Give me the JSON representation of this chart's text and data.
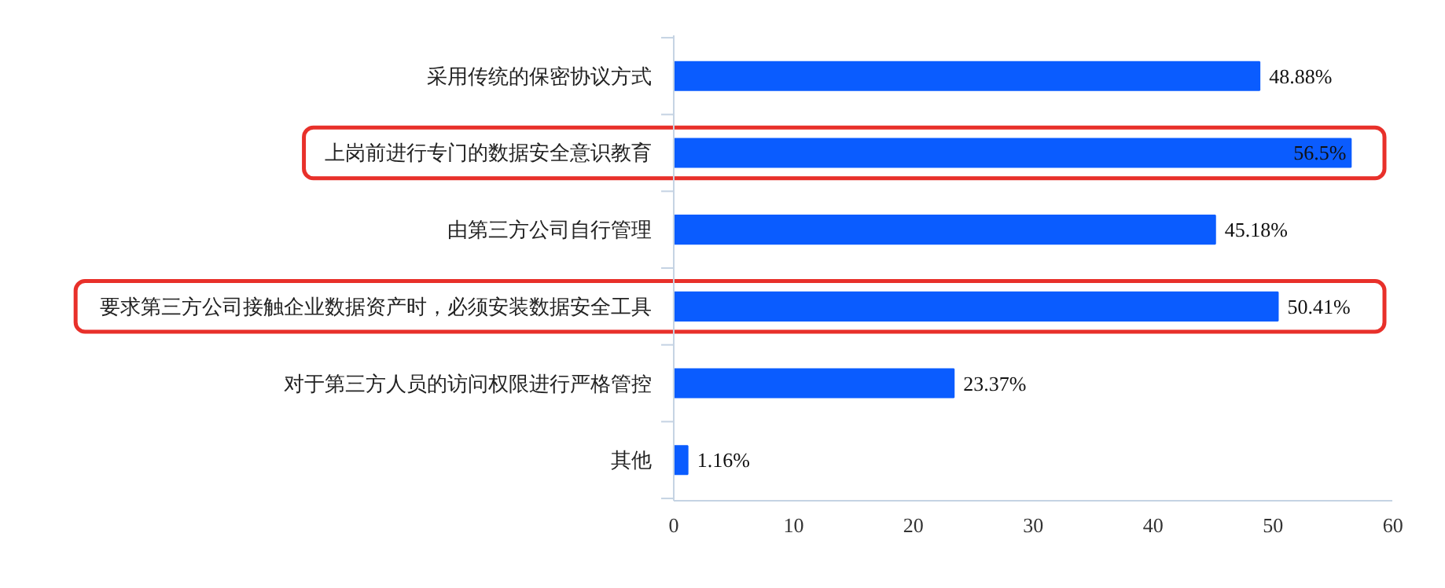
{
  "chart_data": {
    "type": "bar",
    "orientation": "horizontal",
    "categories": [
      "采用传统的保密协议方式",
      "上岗前进行专门的数据安全意识教育",
      "由第三方公司自行管理",
      "要求第三方公司接触企业数据资产时，必须安装数据安全工具",
      "对于第三方人员的访问权限进行严格管控",
      "其他"
    ],
    "values": [
      48.88,
      56.5,
      45.18,
      50.41,
      23.37,
      1.16
    ],
    "value_labels": [
      "48.88%",
      "56.5%",
      "45.18%",
      "50.41%",
      "23.37%",
      "1.16%"
    ],
    "color": "#0a5cff",
    "xlim": [
      0,
      60
    ],
    "xticks": [
      0,
      10,
      20,
      30,
      40,
      50,
      60
    ],
    "grid": false
  }
}
